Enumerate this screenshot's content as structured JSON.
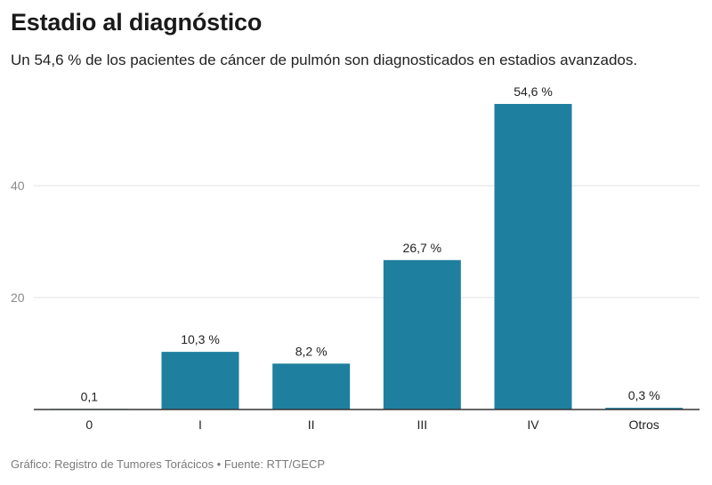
{
  "header": {
    "title": "Estadio al diagnóstico",
    "subtitle": "Un 54,6 % de los pacientes de cáncer de pulmón son diagnosticados en estadios avanzados."
  },
  "footer": {
    "credit": "Gráfico: Registro de Tumores Torácicos • Fuente: RTT/GECP"
  },
  "colors": {
    "bar": "#1f7f9e",
    "grid": "#e3e3e3",
    "axis": "#333333"
  },
  "chart_data": {
    "type": "bar",
    "categories": [
      "0",
      "I",
      "II",
      "III",
      "IV",
      "Otros"
    ],
    "values": [
      0.1,
      10.3,
      8.2,
      26.7,
      54.6,
      0.3
    ],
    "value_labels": [
      "0,1",
      "10,3 %",
      "8,2 %",
      "26,7 %",
      "54,6 %",
      "0,3 %"
    ],
    "yticks": [
      20,
      40
    ],
    "ylim": [
      0,
      60
    ],
    "grid": true,
    "title": "Estadio al diagnóstico",
    "xlabel": "",
    "ylabel": ""
  }
}
